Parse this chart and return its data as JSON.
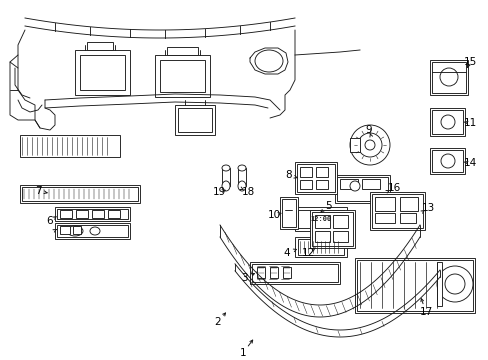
{
  "background_color": "#ffffff",
  "line_color": "#1a1a1a",
  "label_color": "#000000",
  "fig_width": 4.89,
  "fig_height": 3.6,
  "dpi": 100,
  "label_fontsize": 7.5,
  "lw": 0.65
}
